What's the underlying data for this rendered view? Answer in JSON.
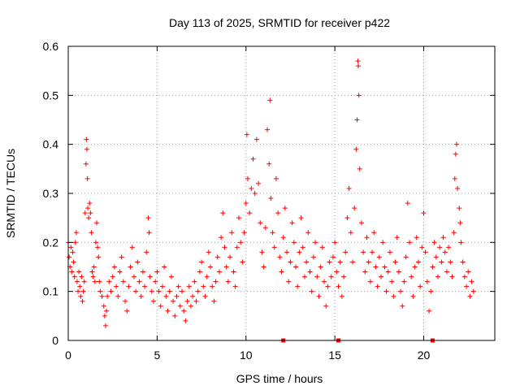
{
  "chart_data": {
    "type": "scatter",
    "title": "Day 113 of 2025, SRMTID for receiver p422",
    "xlabel": "GPS time / hours",
    "ylabel": "SRMTID / TECUs",
    "xlim": [
      0,
      24
    ],
    "ylim": [
      0,
      0.6
    ],
    "xticks": [
      0,
      5,
      10,
      15,
      20
    ],
    "xtick_labels": [
      "0",
      "5",
      "10",
      "15",
      "20"
    ],
    "yticks": [
      0,
      0.1,
      0.2,
      0.3,
      0.4,
      0.5,
      0.6
    ],
    "ytick_labels": [
      "0",
      "0.1",
      "0.2",
      "0.3",
      "0.4",
      "0.5",
      "0.6"
    ],
    "grid": true,
    "marker": "+",
    "color": "#ff0000",
    "series": [
      {
        "name": "SRMTID",
        "points": [
          [
            0.0,
            0.2
          ],
          [
            0.05,
            0.17
          ],
          [
            0.1,
            0.15
          ],
          [
            0.15,
            0.19
          ],
          [
            0.2,
            0.14
          ],
          [
            0.25,
            0.18
          ],
          [
            0.3,
            0.16
          ],
          [
            0.35,
            0.13
          ],
          [
            0.4,
            0.2
          ],
          [
            0.45,
            0.22
          ],
          [
            0.5,
            0.12
          ],
          [
            0.55,
            0.1
          ],
          [
            0.6,
            0.14
          ],
          [
            0.65,
            0.11
          ],
          [
            0.7,
            0.09
          ],
          [
            0.75,
            0.13
          ],
          [
            0.8,
            0.08
          ],
          [
            0.85,
            0.1
          ],
          [
            0.9,
            0.12
          ],
          [
            0.95,
            0.26
          ],
          [
            1.0,
            0.36
          ],
          [
            1.02,
            0.41
          ],
          [
            1.05,
            0.39
          ],
          [
            1.08,
            0.33
          ],
          [
            1.1,
            0.27
          ],
          [
            1.15,
            0.25
          ],
          [
            1.2,
            0.28
          ],
          [
            1.25,
            0.26
          ],
          [
            1.3,
            0.22
          ],
          [
            1.35,
            0.14
          ],
          [
            1.4,
            0.13
          ],
          [
            1.45,
            0.15
          ],
          [
            1.5,
            0.12
          ],
          [
            1.55,
            0.2
          ],
          [
            1.6,
            0.24
          ],
          [
            1.65,
            0.19
          ],
          [
            1.7,
            0.17
          ],
          [
            1.75,
            0.12
          ],
          [
            1.8,
            0.1
          ],
          [
            1.9,
            0.09
          ],
          [
            2.0,
            0.07
          ],
          [
            2.05,
            0.05
          ],
          [
            2.1,
            0.03
          ],
          [
            2.15,
            0.06
          ],
          [
            2.2,
            0.09
          ],
          [
            2.3,
            0.12
          ],
          [
            2.4,
            0.1
          ],
          [
            2.5,
            0.13
          ],
          [
            2.6,
            0.15
          ],
          [
            2.7,
            0.11
          ],
          [
            2.8,
            0.09
          ],
          [
            2.9,
            0.14
          ],
          [
            3.0,
            0.17
          ],
          [
            3.1,
            0.12
          ],
          [
            3.2,
            0.08
          ],
          [
            3.3,
            0.06
          ],
          [
            3.4,
            0.11
          ],
          [
            3.5,
            0.15
          ],
          [
            3.6,
            0.19
          ],
          [
            3.7,
            0.13
          ],
          [
            3.8,
            0.1
          ],
          [
            3.9,
            0.16
          ],
          [
            4.0,
            0.12
          ],
          [
            4.1,
            0.09
          ],
          [
            4.2,
            0.14
          ],
          [
            4.3,
            0.11
          ],
          [
            4.4,
            0.18
          ],
          [
            4.5,
            0.25
          ],
          [
            4.55,
            0.22
          ],
          [
            4.6,
            0.13
          ],
          [
            4.7,
            0.1
          ],
          [
            4.8,
            0.08
          ],
          [
            4.9,
            0.12
          ],
          [
            5.0,
            0.14
          ],
          [
            5.1,
            0.1
          ],
          [
            5.2,
            0.07
          ],
          [
            5.3,
            0.11
          ],
          [
            5.4,
            0.15
          ],
          [
            5.5,
            0.09
          ],
          [
            5.6,
            0.06
          ],
          [
            5.7,
            0.1
          ],
          [
            5.8,
            0.13
          ],
          [
            5.9,
            0.08
          ],
          [
            6.0,
            0.05
          ],
          [
            6.1,
            0.09
          ],
          [
            6.2,
            0.11
          ],
          [
            6.3,
            0.07
          ],
          [
            6.4,
            0.1
          ],
          [
            6.5,
            0.06
          ],
          [
            6.6,
            0.04
          ],
          [
            6.7,
            0.08
          ],
          [
            6.8,
            0.11
          ],
          [
            6.9,
            0.07
          ],
          [
            7.0,
            0.09
          ],
          [
            7.1,
            0.12
          ],
          [
            7.2,
            0.08
          ],
          [
            7.3,
            0.1
          ],
          [
            7.4,
            0.14
          ],
          [
            7.5,
            0.16
          ],
          [
            7.6,
            0.11
          ],
          [
            7.7,
            0.09
          ],
          [
            7.8,
            0.13
          ],
          [
            7.9,
            0.18
          ],
          [
            8.0,
            0.15
          ],
          [
            8.1,
            0.11
          ],
          [
            8.2,
            0.08
          ],
          [
            8.3,
            0.12
          ],
          [
            8.4,
            0.17
          ],
          [
            8.5,
            0.14
          ],
          [
            8.6,
            0.21
          ],
          [
            8.7,
            0.26
          ],
          [
            8.8,
            0.19
          ],
          [
            8.9,
            0.15
          ],
          [
            9.0,
            0.12
          ],
          [
            9.1,
            0.17
          ],
          [
            9.2,
            0.22
          ],
          [
            9.3,
            0.14
          ],
          [
            9.4,
            0.11
          ],
          [
            9.5,
            0.19
          ],
          [
            9.6,
            0.25
          ],
          [
            9.7,
            0.2
          ],
          [
            9.8,
            0.16
          ],
          [
            9.9,
            0.22
          ],
          [
            10.0,
            0.28
          ],
          [
            10.05,
            0.42
          ],
          [
            10.1,
            0.33
          ],
          [
            10.2,
            0.26
          ],
          [
            10.3,
            0.31
          ],
          [
            10.4,
            0.37
          ],
          [
            10.5,
            0.3
          ],
          [
            10.6,
            0.41
          ],
          [
            10.7,
            0.32
          ],
          [
            10.8,
            0.24
          ],
          [
            10.9,
            0.18
          ],
          [
            11.0,
            0.15
          ],
          [
            11.1,
            0.23
          ],
          [
            11.2,
            0.43
          ],
          [
            11.3,
            0.36
          ],
          [
            11.35,
            0.49
          ],
          [
            11.4,
            0.29
          ],
          [
            11.5,
            0.22
          ],
          [
            11.6,
            0.19
          ],
          [
            11.7,
            0.33
          ],
          [
            11.8,
            0.26
          ],
          [
            11.9,
            0.17
          ],
          [
            12.0,
            0.14
          ],
          [
            12.1,
            0.21
          ],
          [
            12.2,
            0.27
          ],
          [
            12.3,
            0.18
          ],
          [
            12.4,
            0.12
          ],
          [
            12.5,
            0.16
          ],
          [
            12.6,
            0.24
          ],
          [
            12.7,
            0.2
          ],
          [
            12.8,
            0.15
          ],
          [
            12.9,
            0.11
          ],
          [
            13.0,
            0.18
          ],
          [
            13.1,
            0.25
          ],
          [
            13.2,
            0.19
          ],
          [
            13.3,
            0.13
          ],
          [
            13.4,
            0.16
          ],
          [
            13.5,
            0.22
          ],
          [
            13.6,
            0.14
          ],
          [
            13.7,
            0.1
          ],
          [
            13.8,
            0.17
          ],
          [
            13.9,
            0.2
          ],
          [
            14.0,
            0.13
          ],
          [
            14.1,
            0.09
          ],
          [
            14.2,
            0.15
          ],
          [
            14.3,
            0.19
          ],
          [
            14.4,
            0.12
          ],
          [
            14.5,
            0.07
          ],
          [
            14.6,
            0.11
          ],
          [
            14.7,
            0.16
          ],
          [
            14.8,
            0.13
          ],
          [
            14.9,
            0.17
          ],
          [
            15.0,
            0.2
          ],
          [
            15.1,
            0.14
          ],
          [
            15.2,
            0.11
          ],
          [
            15.3,
            0.16
          ],
          [
            15.4,
            0.09
          ],
          [
            15.5,
            0.13
          ],
          [
            15.6,
            0.18
          ],
          [
            15.7,
            0.25
          ],
          [
            15.8,
            0.31
          ],
          [
            15.9,
            0.22
          ],
          [
            16.0,
            0.16
          ],
          [
            16.1,
            0.27
          ],
          [
            16.2,
            0.39
          ],
          [
            16.25,
            0.45
          ],
          [
            16.3,
            0.57
          ],
          [
            16.32,
            0.56
          ],
          [
            16.35,
            0.5
          ],
          [
            16.4,
            0.35
          ],
          [
            16.5,
            0.24
          ],
          [
            16.6,
            0.18
          ],
          [
            16.7,
            0.14
          ],
          [
            16.8,
            0.21
          ],
          [
            16.9,
            0.16
          ],
          [
            17.0,
            0.12
          ],
          [
            17.1,
            0.18
          ],
          [
            17.2,
            0.22
          ],
          [
            17.3,
            0.15
          ],
          [
            17.4,
            0.11
          ],
          [
            17.5,
            0.17
          ],
          [
            17.6,
            0.13
          ],
          [
            17.7,
            0.2
          ],
          [
            17.8,
            0.15
          ],
          [
            17.9,
            0.1
          ],
          [
            18.0,
            0.14
          ],
          [
            18.1,
            0.18
          ],
          [
            18.2,
            0.12
          ],
          [
            18.3,
            0.09
          ],
          [
            18.4,
            0.16
          ],
          [
            18.5,
            0.21
          ],
          [
            18.6,
            0.14
          ],
          [
            18.7,
            0.1
          ],
          [
            18.8,
            0.07
          ],
          [
            18.9,
            0.12
          ],
          [
            19.0,
            0.17
          ],
          [
            19.1,
            0.28
          ],
          [
            19.2,
            0.2
          ],
          [
            19.3,
            0.13
          ],
          [
            19.4,
            0.09
          ],
          [
            19.5,
            0.15
          ],
          [
            19.6,
            0.21
          ],
          [
            19.7,
            0.16
          ],
          [
            19.8,
            0.11
          ],
          [
            19.9,
            0.19
          ],
          [
            20.0,
            0.26
          ],
          [
            20.1,
            0.18
          ],
          [
            20.2,
            0.12
          ],
          [
            20.3,
            0.06
          ],
          [
            20.4,
            0.1
          ],
          [
            20.5,
            0.15
          ],
          [
            20.6,
            0.2
          ],
          [
            20.7,
            0.17
          ],
          [
            20.8,
            0.13
          ],
          [
            20.9,
            0.19
          ],
          [
            21.0,
            0.16
          ],
          [
            21.1,
            0.21
          ],
          [
            21.2,
            0.18
          ],
          [
            21.3,
            0.14
          ],
          [
            21.4,
            0.19
          ],
          [
            21.5,
            0.16
          ],
          [
            21.6,
            0.13
          ],
          [
            21.7,
            0.22
          ],
          [
            21.75,
            0.33
          ],
          [
            21.8,
            0.38
          ],
          [
            21.85,
            0.4
          ],
          [
            21.9,
            0.31
          ],
          [
            22.0,
            0.27
          ],
          [
            22.05,
            0.24
          ],
          [
            22.1,
            0.2
          ],
          [
            22.2,
            0.16
          ],
          [
            22.3,
            0.13
          ],
          [
            22.4,
            0.11
          ],
          [
            22.5,
            0.14
          ],
          [
            22.6,
            0.09
          ],
          [
            22.7,
            0.12
          ],
          [
            22.8,
            0.1
          ]
        ]
      }
    ],
    "axis_markers": [
      12.1,
      15.2,
      20.5
    ]
  }
}
